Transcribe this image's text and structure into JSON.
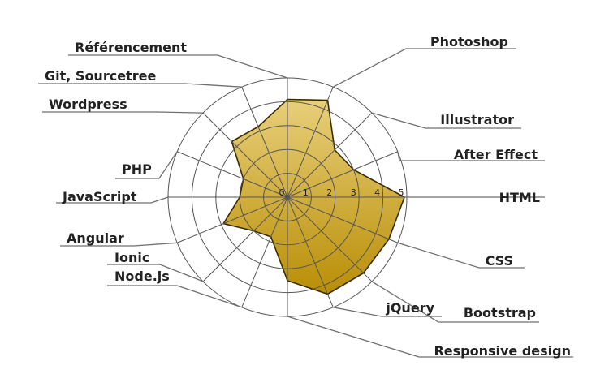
{
  "chart_data": {
    "type": "radar",
    "r_min": 0,
    "r_max": 5,
    "radial_ticks": [
      "0",
      "1",
      "2",
      "3",
      "4",
      "5"
    ],
    "colors": {
      "fill_top": "#e8cf7a",
      "fill_bottom": "#b98e06",
      "stroke": "#3a2c00",
      "grid": "#555555",
      "leader": "#6f6f6f"
    },
    "axes": [
      {
        "label": "HTML",
        "value": 4.9
      },
      {
        "label": "After Effect",
        "value": 3.0
      },
      {
        "label": "Illustrator",
        "value": 2.8
      },
      {
        "label": "Photoshop",
        "value": 4.4
      },
      {
        "label": "Référencement",
        "value": 4.1
      },
      {
        "label": "Git, Sourcetree",
        "value": 3.2
      },
      {
        "label": "Wordpress",
        "value": 3.3
      },
      {
        "label": "PHP",
        "value": 2.0
      },
      {
        "label": "JavaScript",
        "value": 2.0
      },
      {
        "label": "Angular",
        "value": 2.9
      },
      {
        "label": "Ionic",
        "value": 2.0
      },
      {
        "label": "Node.js",
        "value": 1.8
      },
      {
        "label": "Responsive design",
        "value": 3.5
      },
      {
        "label": "jQuery",
        "value": 4.4
      },
      {
        "label": "Bootstrap",
        "value": 4.5
      },
      {
        "label": "CSS",
        "value": 4.6
      }
    ]
  }
}
